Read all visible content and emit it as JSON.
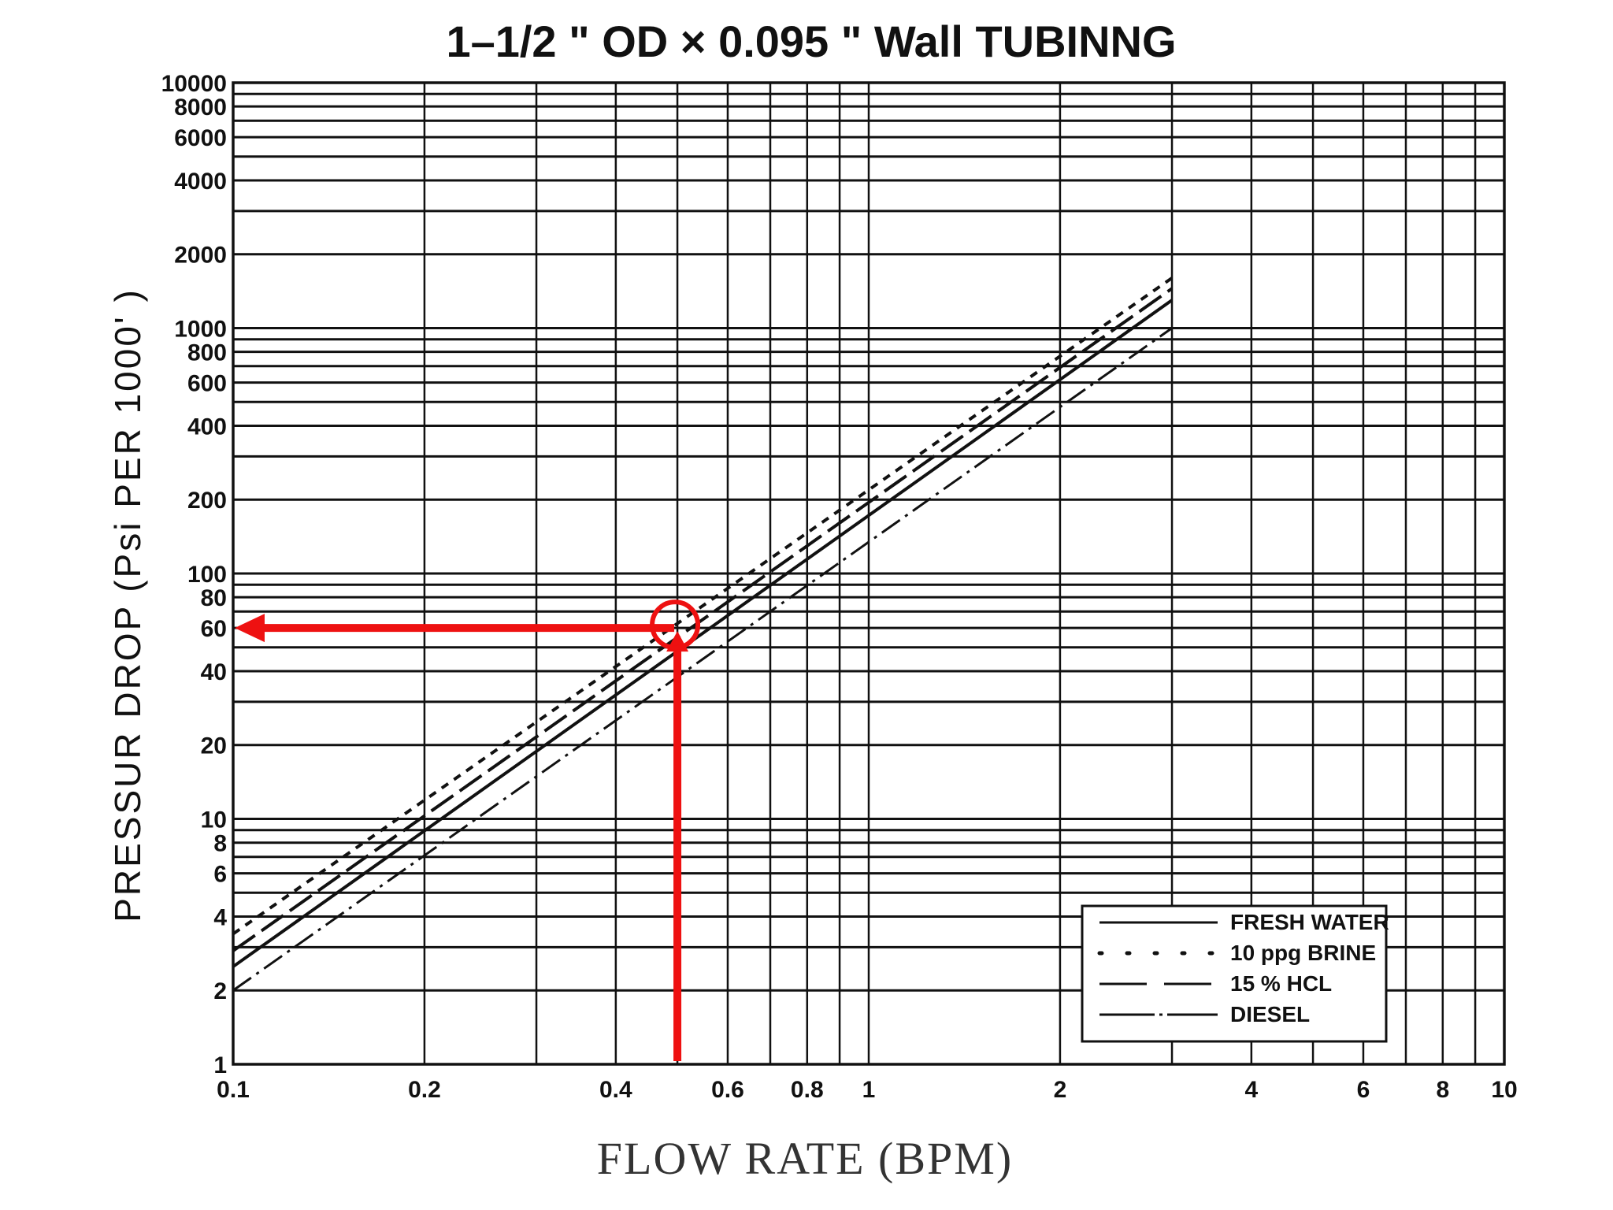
{
  "chart_data": {
    "type": "line",
    "title": "1–1/2 \" OD × 0.095 \" Wall TUBINNG",
    "xlabel": "FLOW RATE  (BPM)",
    "ylabel": "PRESSUR DROP  (Psi PER 1000' )",
    "x_scale": "log",
    "y_scale": "log",
    "xlim": [
      0.1,
      10
    ],
    "ylim": [
      1,
      10000
    ],
    "grid": true,
    "x_ticks": [
      {
        "value": 0.1,
        "label": "0.1"
      },
      {
        "value": 0.2,
        "label": "0.2"
      },
      {
        "value": 0.4,
        "label": "0.4"
      },
      {
        "value": 0.6,
        "label": "0.6"
      },
      {
        "value": 0.8,
        "label": "0.8"
      },
      {
        "value": 1,
        "label": "1"
      },
      {
        "value": 2,
        "label": "2"
      },
      {
        "value": 4,
        "label": "4"
      },
      {
        "value": 6,
        "label": "6"
      },
      {
        "value": 8,
        "label": "8"
      },
      {
        "value": 10,
        "label": "10"
      }
    ],
    "y_ticks": [
      {
        "value": 1,
        "label": "1"
      },
      {
        "value": 2,
        "label": "2"
      },
      {
        "value": 4,
        "label": "4"
      },
      {
        "value": 6,
        "label": "6"
      },
      {
        "value": 8,
        "label": "8"
      },
      {
        "value": 10,
        "label": "10"
      },
      {
        "value": 20,
        "label": "20"
      },
      {
        "value": 40,
        "label": "40"
      },
      {
        "value": 60,
        "label": "60"
      },
      {
        "value": 80,
        "label": "80"
      },
      {
        "value": 100,
        "label": "100"
      },
      {
        "value": 200,
        "label": "200"
      },
      {
        "value": 400,
        "label": "400"
      },
      {
        "value": 600,
        "label": "600"
      },
      {
        "value": 800,
        "label": "800"
      },
      {
        "value": 1000,
        "label": "1000"
      },
      {
        "value": 2000,
        "label": "2000"
      },
      {
        "value": 4000,
        "label": "4000"
      },
      {
        "value": 6000,
        "label": "6000"
      },
      {
        "value": 8000,
        "label": "8000"
      },
      {
        "value": 10000,
        "label": "10000"
      }
    ],
    "x_gridlines": [
      0.1,
      0.2,
      0.3,
      0.4,
      0.5,
      0.6,
      0.7,
      0.8,
      0.9,
      1,
      2,
      3,
      4,
      5,
      6,
      7,
      8,
      9,
      10
    ],
    "y_gridlines": [
      1,
      2,
      3,
      4,
      5,
      6,
      7,
      8,
      9,
      10,
      20,
      30,
      40,
      50,
      60,
      70,
      80,
      90,
      100,
      200,
      300,
      400,
      500,
      600,
      700,
      800,
      900,
      1000,
      2000,
      3000,
      4000,
      5000,
      6000,
      7000,
      8000,
      9000,
      10000
    ],
    "series": [
      {
        "name": "FRESH WATER",
        "style": "solid",
        "x": [
          0.1,
          3
        ],
        "y": [
          2.5,
          1300
        ]
      },
      {
        "name": "10  ppg  BRINE",
        "style": "dotted",
        "x": [
          0.1,
          3
        ],
        "y": [
          3.4,
          1600
        ]
      },
      {
        "name": "15 % HCL",
        "style": "dashed",
        "x": [
          0.1,
          3
        ],
        "y": [
          2.9,
          1450
        ]
      },
      {
        "name": "DIESEL",
        "style": "dash-dot",
        "x": [
          0.1,
          3
        ],
        "y": [
          2.0,
          1000
        ]
      }
    ],
    "annotation": {
      "type": "reading",
      "x": 0.5,
      "y": 60,
      "color": "#ee1111"
    },
    "legend_position": "bottom-right"
  }
}
